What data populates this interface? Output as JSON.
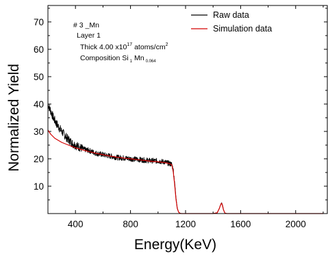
{
  "chart_data": {
    "type": "line",
    "xlabel": "Energy(KeV)",
    "ylabel": "Normalized Yield",
    "xlim": [
      200,
      2230
    ],
    "ylim": [
      0,
      76
    ],
    "x_ticks": [
      400,
      800,
      1200,
      1600,
      2000
    ],
    "y_ticks": [
      10,
      20,
      30,
      40,
      50,
      60,
      70
    ],
    "grid": false,
    "legend_placement": "top-right",
    "series": [
      {
        "name": "Raw data",
        "color": "#000000",
        "x": [
          200,
          220,
          240,
          260,
          280,
          300,
          340,
          380,
          420,
          460,
          500,
          550,
          600,
          650,
          700,
          750,
          800,
          850,
          900,
          950,
          1000,
          1050,
          1080,
          1100,
          1110,
          1120,
          1130,
          1140,
          1150,
          1160,
          1170,
          1200,
          1250,
          1300,
          1350,
          1400,
          1430,
          1445,
          1455,
          1462,
          1468,
          1475,
          1485,
          1500,
          1600,
          1800,
          2000,
          2200
        ],
        "y": [
          40,
          37.5,
          35,
          33,
          31.5,
          30,
          27.5,
          25.5,
          24.5,
          23.5,
          23,
          22,
          21.5,
          21,
          20.5,
          20.3,
          20,
          19.8,
          19.5,
          19.3,
          19.2,
          18.8,
          18.3,
          18,
          16,
          12,
          6,
          2,
          0.5,
          0.1,
          0,
          0,
          0,
          0,
          0,
          0,
          0.3,
          1.8,
          3.3,
          4,
          3.2,
          1.5,
          0.2,
          0,
          0,
          0,
          0,
          0
        ]
      },
      {
        "name": "Simulation data",
        "color": "#d40000",
        "x": [
          200,
          220,
          250,
          300,
          350,
          400,
          450,
          500,
          550,
          600,
          650,
          700,
          750,
          800,
          850,
          900,
          950,
          1000,
          1050,
          1080,
          1100,
          1110,
          1120,
          1130,
          1140,
          1150,
          1160,
          1170,
          1200,
          1300,
          1400,
          1430,
          1445,
          1455,
          1462,
          1468,
          1475,
          1485,
          1500,
          1600,
          1800,
          2000,
          2200
        ],
        "y": [
          30.5,
          29,
          27.5,
          26,
          25,
          24,
          23.3,
          22.6,
          22,
          21.5,
          21,
          20.6,
          20.3,
          20,
          19.7,
          19.4,
          19.1,
          18.9,
          18.6,
          18.3,
          17.8,
          15.5,
          11,
          5.5,
          1.8,
          0.5,
          0.1,
          0,
          0,
          0,
          0,
          0.3,
          1.8,
          3.2,
          3.8,
          3,
          1.4,
          0.2,
          0,
          0,
          0,
          0,
          0
        ]
      }
    ],
    "annotation": {
      "sample": "# 3 _Mn",
      "layer": "Layer 1",
      "thick_prefix": "Thick 4.00 x10",
      "thick_exp": "17",
      "thick_unit": "atoms/cm",
      "thick_unit_exp": "2",
      "comp_prefix": "Composition Si",
      "comp_si_sub": "1",
      "comp_mn": "Mn",
      "comp_mn_sub": "0.064"
    }
  }
}
